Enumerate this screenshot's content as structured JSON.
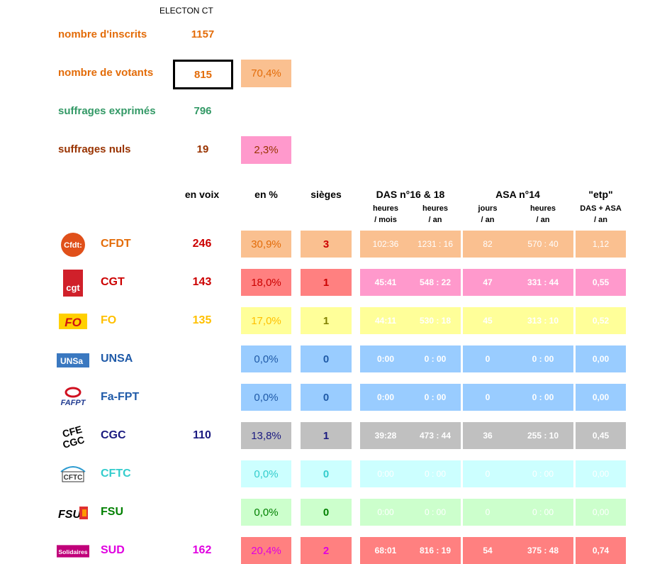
{
  "title": "ELECTON CT",
  "summary": {
    "inscrits_label": "nombre d'inscrits",
    "inscrits_value": "1157",
    "votants_label": "nombre de votants",
    "votants_value": "815",
    "votants_pct": "70,4%",
    "exprimes_label": "suffrages exprimés",
    "exprimes_value": "796",
    "nuls_label": "suffrages nuls",
    "nuls_value": "19",
    "nuls_pct": "2,3%"
  },
  "headers": {
    "voix": "en voix",
    "pct": "en %",
    "sieges": "sièges",
    "das": "DAS n°16 & 18",
    "das_mois_1": "heures",
    "das_mois_2": "/ mois",
    "das_an_1": "heures",
    "das_an_2": "/ an",
    "asa": "ASA n°14",
    "asa_jours_1": "jours",
    "asa_jours_2": "/ an",
    "asa_heures_1": "heures",
    "asa_heures_2": "/ an",
    "etp": "\"etp\"",
    "etp_sub1": "DAS + ASA",
    "etp_sub2": "/ an"
  },
  "colors": {
    "orange_text": "#e36c09",
    "green_text": "#339966",
    "brown_text": "#993300",
    "peach": "#fac090",
    "pink": "#ff99cc",
    "red": "#ff8080",
    "yellow": "#ffff99",
    "blue": "#99ccff",
    "gray": "#c0c0c0",
    "cyan": "#ccffff",
    "lightgreen": "#ccffcc",
    "hotpink": "#ff8ad8"
  },
  "rows": [
    {
      "name": "CFDT",
      "logo": "cfdt-logo",
      "voix": "246",
      "pct": "30,9%",
      "sieges": "3",
      "das_mois": "102:36",
      "das_an": "1231 : 16",
      "asa_jours": "82",
      "asa_heures": "570 : 40",
      "etp": "1,12",
      "name_color": "#e36c09",
      "voix_color": "#cc0000",
      "pct_color": "#e36c09",
      "seat_color": "#cc0000",
      "box": "#fac090",
      "das_bg": "#fac090"
    },
    {
      "name": "CGT",
      "logo": "cgt-logo",
      "voix": "143",
      "pct": "18,0%",
      "sieges": "1",
      "das_mois": "45:41",
      "das_an": "548 : 22",
      "asa_jours": "47",
      "asa_heures": "331 : 44",
      "etp": "0,55",
      "name_color": "#cc0000",
      "voix_color": "#cc0000",
      "pct_color": "#cc0000",
      "seat_color": "#cc0000",
      "box": "#ff8080",
      "das_bg": "#ff99cc"
    },
    {
      "name": "FO",
      "logo": "fo-logo",
      "voix": "135",
      "pct": "17,0%",
      "sieges": "1",
      "das_mois": "44:11",
      "das_an": "530 : 18",
      "asa_jours": "45",
      "asa_heures": "313 : 10",
      "etp": "0,52",
      "name_color": "#ffc000",
      "voix_color": "#ffc000",
      "pct_color": "#ffc000",
      "seat_color": "#808000",
      "box": "#ffff99",
      "das_bg": "#ffff99"
    },
    {
      "name": "UNSA",
      "logo": "unsa-logo",
      "voix": "",
      "pct": "0,0%",
      "sieges": "0",
      "das_mois": "0:00",
      "das_an": "0 : 00",
      "asa_jours": "0",
      "asa_heures": "0 : 00",
      "etp": "0,00",
      "name_color": "#1f5aa8",
      "voix_color": "#1f5aa8",
      "pct_color": "#1f5aa8",
      "seat_color": "#1f5aa8",
      "box": "#99ccff",
      "das_bg": "#99ccff"
    },
    {
      "name": "Fa-FPT",
      "logo": "fafpt-logo",
      "voix": "",
      "pct": "0,0%",
      "sieges": "0",
      "das_mois": "0:00",
      "das_an": "0 : 00",
      "asa_jours": "0",
      "asa_heures": "0 : 00",
      "etp": "0,00",
      "name_color": "#1f5aa8",
      "voix_color": "#1f5aa8",
      "pct_color": "#1f5aa8",
      "seat_color": "#1f5aa8",
      "box": "#99ccff",
      "das_bg": "#99ccff"
    },
    {
      "name": "CGC",
      "logo": "cgc-logo",
      "voix": "110",
      "pct": "13,8%",
      "sieges": "1",
      "das_mois": "39:28",
      "das_an": "473 : 44",
      "asa_jours": "36",
      "asa_heures": "255 : 10",
      "etp": "0,45",
      "name_color": "#1a1a80",
      "voix_color": "#1a1a80",
      "pct_color": "#1a1a80",
      "seat_color": "#1a1a80",
      "box": "#c0c0c0",
      "das_bg": "#c0c0c0"
    },
    {
      "name": "CFTC",
      "logo": "cftc-logo",
      "voix": "",
      "pct": "0,0%",
      "sieges": "0",
      "das_mois": "0:00",
      "das_an": "0 : 00",
      "asa_jours": "0",
      "asa_heures": "0 : 00",
      "etp": "0,00",
      "name_color": "#33cccc",
      "voix_color": "#33cccc",
      "pct_color": "#33cccc",
      "seat_color": "#33cccc",
      "box": "#ccffff",
      "das_bg": "#ccffff"
    },
    {
      "name": "FSU",
      "logo": "fsu-logo",
      "voix": "",
      "pct": "0,0%",
      "sieges": "0",
      "das_mois": "0:00",
      "das_an": "0 : 00",
      "asa_jours": "0",
      "asa_heures": "0 : 00",
      "etp": "0,00",
      "name_color": "#008000",
      "voix_color": "#008000",
      "pct_color": "#008000",
      "seat_color": "#008000",
      "box": "#ccffcc",
      "das_bg": "#ccffcc"
    },
    {
      "name": "SUD",
      "logo": "sud-logo",
      "voix": "162",
      "pct": "20,4%",
      "sieges": "2",
      "das_mois": "68:01",
      "das_an": "816 : 19",
      "asa_jours": "54",
      "asa_heures": "375 : 48",
      "etp": "0,74",
      "name_color": "#e000e0",
      "voix_color": "#e000e0",
      "pct_color": "#e000e0",
      "seat_color": "#e000e0",
      "box": "#ff8080",
      "das_bg": "#ff8080"
    }
  ]
}
